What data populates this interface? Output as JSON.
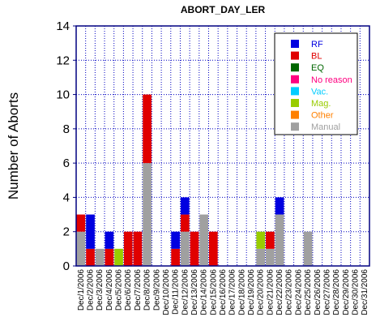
{
  "chart_data": {
    "type": "bar",
    "stacked": true,
    "title": "ABORT_DAY_LER",
    "xlabel": "",
    "ylabel": "Number of Aborts",
    "ylim": [
      0,
      14
    ],
    "yticks": [
      "0",
      "2",
      "4",
      "6",
      "8",
      "10",
      "12",
      "14"
    ],
    "grid": true,
    "legend_position": "top-right",
    "categories": [
      "Dec/1/2006",
      "Dec/2/2006",
      "Dec/3/2006",
      "Dec/4/2006",
      "Dec/5/2006",
      "Dec/6/2006",
      "Dec/7/2006",
      "Dec/8/2006",
      "Dec/9/2006",
      "Dec/10/2006",
      "Dec/11/2006",
      "Dec/12/2006",
      "Dec/13/2006",
      "Dec/14/2006",
      "Dec/15/2006",
      "Dec/16/2006",
      "Dec/17/2006",
      "Dec/18/2006",
      "Dec/19/2006",
      "Dec/20/2006",
      "Dec/21/2006",
      "Dec/22/2006",
      "Dec/23/2006",
      "Dec/24/2006",
      "Dec/25/2006",
      "Dec/26/2006",
      "Dec/27/2006",
      "Dec/28/2006",
      "Dec/29/2006",
      "Dec/30/2006",
      "Dec/31/2006"
    ],
    "series": [
      {
        "name": "Manual",
        "color": "#a0a0a0",
        "values": [
          2,
          0,
          1,
          0,
          0,
          0,
          0,
          6,
          0,
          0,
          0,
          2,
          0,
          3,
          0,
          0,
          0,
          0,
          0,
          1,
          1,
          3,
          0,
          0,
          2,
          0,
          0,
          0,
          0,
          0,
          0
        ]
      },
      {
        "name": "Other",
        "color": "#ff8000",
        "values": [
          0,
          0,
          0,
          0,
          0,
          0,
          0,
          0,
          0,
          0,
          0,
          0,
          0,
          0,
          0,
          0,
          0,
          0,
          0,
          0,
          0,
          0,
          0,
          0,
          0,
          0,
          0,
          0,
          0,
          0,
          0
        ]
      },
      {
        "name": "Mag.",
        "color": "#99cc00",
        "values": [
          0,
          0,
          0,
          0,
          1,
          0,
          0,
          0,
          0,
          0,
          0,
          0,
          0,
          0,
          0,
          0,
          0,
          0,
          0,
          1,
          0,
          0,
          0,
          0,
          0,
          0,
          0,
          0,
          0,
          0,
          0
        ]
      },
      {
        "name": "Vac.",
        "color": "#00ccff",
        "values": [
          0,
          0,
          0,
          0,
          0,
          0,
          0,
          0,
          0,
          0,
          0,
          0,
          0,
          0,
          0,
          0,
          0,
          0,
          0,
          0,
          0,
          0,
          0,
          0,
          0,
          0,
          0,
          0,
          0,
          0,
          0
        ]
      },
      {
        "name": "No reason",
        "color": "#ff0080",
        "values": [
          0,
          0,
          0,
          0,
          0,
          0,
          0,
          0,
          0,
          0,
          0,
          0,
          0,
          0,
          0,
          0,
          0,
          0,
          0,
          0,
          0,
          0,
          0,
          0,
          0,
          0,
          0,
          0,
          0,
          0,
          0
        ]
      },
      {
        "name": "EQ",
        "color": "#006600",
        "values": [
          0,
          0,
          0,
          0,
          0,
          0,
          0,
          0,
          0,
          0,
          0,
          0,
          0,
          0,
          0,
          0,
          0,
          0,
          0,
          0,
          0,
          0,
          0,
          0,
          0,
          0,
          0,
          0,
          0,
          0,
          0
        ]
      },
      {
        "name": "BL",
        "color": "#e00000",
        "values": [
          1,
          1,
          0,
          1,
          0,
          2,
          2,
          4,
          0,
          0,
          1,
          1,
          2,
          0,
          2,
          0,
          0,
          0,
          0,
          0,
          1,
          0,
          0,
          0,
          0,
          0,
          0,
          0,
          0,
          0,
          0
        ]
      },
      {
        "name": "RF",
        "color": "#0000e0",
        "values": [
          0,
          2,
          0,
          1,
          0,
          0,
          0,
          0,
          0,
          0,
          1,
          1,
          0,
          0,
          0,
          0,
          0,
          0,
          0,
          0,
          0,
          1,
          0,
          0,
          0,
          0,
          0,
          0,
          0,
          0,
          0
        ]
      }
    ],
    "legend": [
      {
        "name": "RF",
        "color": "#0000e0",
        "text_color": "#0000e0"
      },
      {
        "name": "BL",
        "color": "#e00000",
        "text_color": "#e00000"
      },
      {
        "name": "EQ",
        "color": "#006600",
        "text_color": "#006600"
      },
      {
        "name": "No reason",
        "color": "#ff0080",
        "text_color": "#ff0080"
      },
      {
        "name": "Vac.",
        "color": "#00ccff",
        "text_color": "#00ccff"
      },
      {
        "name": "Mag.",
        "color": "#99cc00",
        "text_color": "#99cc00"
      },
      {
        "name": "Other",
        "color": "#ff8000",
        "text_color": "#ff8000"
      },
      {
        "name": "Manual",
        "color": "#a0a0a0",
        "text_color": "#a0a0a0"
      }
    ],
    "axis_color": "#000080",
    "grid_color": "#0000c0"
  }
}
